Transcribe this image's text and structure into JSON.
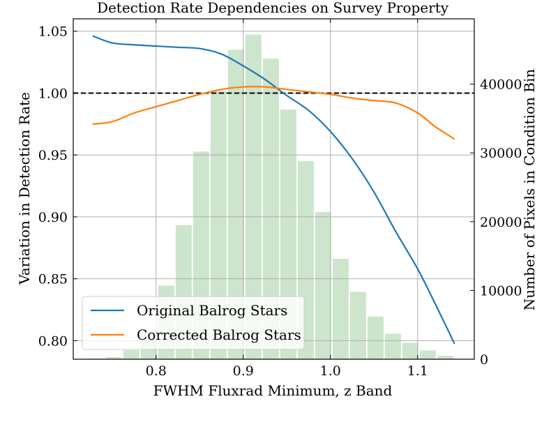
{
  "chart_data": {
    "type": "line",
    "title": "Detection Rate Dependencies on Survey Property",
    "xlabel": "FWHM Fluxrad Minimum, z Band",
    "ylabel": "Variation in Detection Rate",
    "y2label": "Number of Pixels in Condition Bin",
    "xlim": [
      0.705,
      1.165
    ],
    "ylim": [
      0.785,
      1.06
    ],
    "y2lim": [
      0,
      49500
    ],
    "xticks": [
      0.8,
      0.9,
      1.0,
      1.1
    ],
    "xtick_labels": [
      "0.8",
      "0.9",
      "1.0",
      "1.1"
    ],
    "yticks": [
      0.8,
      0.85,
      0.9,
      0.95,
      1.0,
      1.05
    ],
    "ytick_labels": [
      "0.80",
      "0.85",
      "0.90",
      "0.95",
      "1.00",
      "1.05"
    ],
    "y2ticks": [
      0,
      10000,
      20000,
      30000,
      40000
    ],
    "y2tick_labels": [
      "0",
      "10000",
      "20000",
      "30000",
      "40000"
    ],
    "grid": true,
    "reference_line": {
      "y": 1.0,
      "style": "dashed",
      "color": "#000000"
    },
    "legend_position": "lower-left",
    "series": [
      {
        "name": "Original Balrog Stars",
        "color": "#1f77b4",
        "x": [
          0.728,
          0.75,
          0.775,
          0.8,
          0.825,
          0.85,
          0.875,
          0.9,
          0.925,
          0.95,
          0.975,
          1.0,
          1.025,
          1.05,
          1.075,
          1.1,
          1.12,
          1.142
        ],
        "y": [
          1.046,
          1.0405,
          1.039,
          1.038,
          1.037,
          1.036,
          1.0315,
          1.022,
          1.011,
          0.998,
          0.986,
          0.969,
          0.947,
          0.92,
          0.888,
          0.858,
          0.83,
          0.798
        ]
      },
      {
        "name": "Corrected Balrog Stars",
        "color": "#ff7f0e",
        "x": [
          0.728,
          0.75,
          0.775,
          0.8,
          0.825,
          0.85,
          0.875,
          0.9,
          0.925,
          0.95,
          0.975,
          1.0,
          1.025,
          1.05,
          1.075,
          1.1,
          1.12,
          1.142
        ],
        "y": [
          0.975,
          0.977,
          0.984,
          0.989,
          0.994,
          0.999,
          1.003,
          1.005,
          1.005,
          1.003,
          1.001,
          0.999,
          0.996,
          0.994,
          0.992,
          0.984,
          0.973,
          0.963
        ]
      }
    ],
    "histogram": {
      "color": "#a3d0a3",
      "bin_edges": [
        0.7225,
        0.7425,
        0.7625,
        0.7825,
        0.8025,
        0.8225,
        0.8425,
        0.8625,
        0.8825,
        0.9025,
        0.9225,
        0.9425,
        0.9625,
        0.9825,
        1.0025,
        1.0225,
        1.0425,
        1.0625,
        1.0825,
        1.1025,
        1.1225,
        1.1425
      ],
      "counts": [
        100,
        300,
        1300,
        4300,
        10700,
        19500,
        30200,
        39000,
        45000,
        47200,
        43700,
        36300,
        28800,
        21400,
        14600,
        9800,
        6200,
        3700,
        2400,
        1300,
        500
      ]
    }
  }
}
